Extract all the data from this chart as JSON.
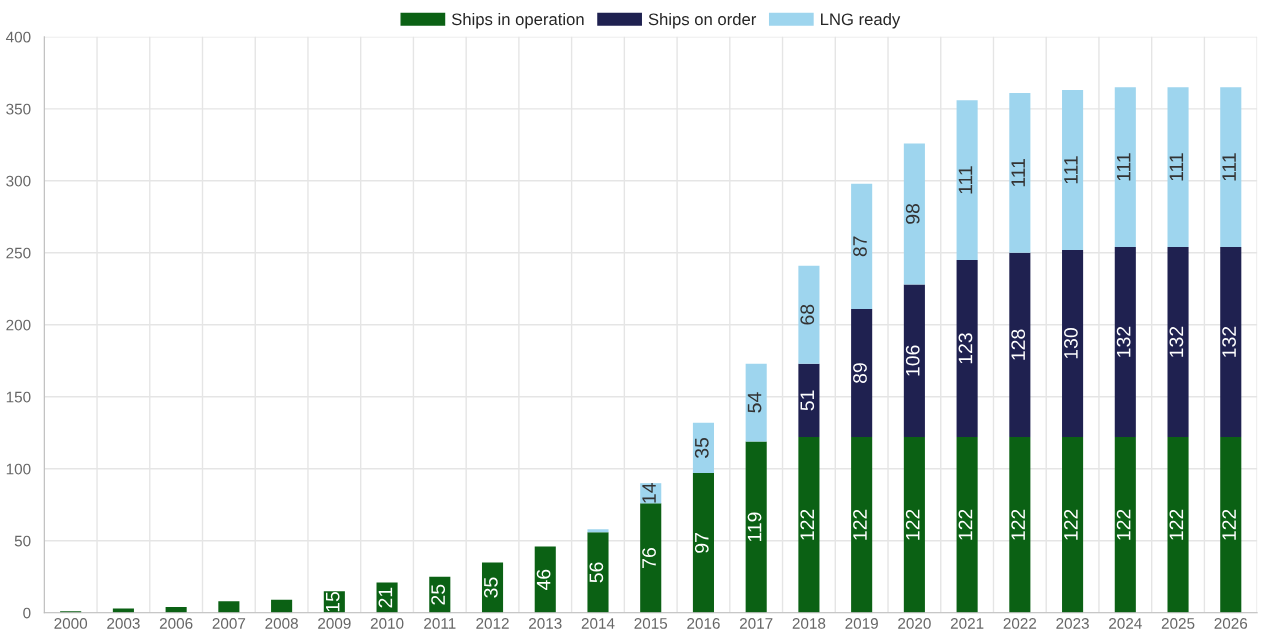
{
  "chart_data": {
    "type": "bar",
    "stacked": true,
    "categories": [
      "2000",
      "2003",
      "2006",
      "2007",
      "2008",
      "2009",
      "2010",
      "2011",
      "2012",
      "2013",
      "2014",
      "2015",
      "2016",
      "2017",
      "2018",
      "2019",
      "2020",
      "2021",
      "2022",
      "2023",
      "2024",
      "2025",
      "2026"
    ],
    "series": [
      {
        "name": "Ships in operation",
        "color": "#0b6114",
        "values": [
          1,
          3,
          4,
          8,
          9,
          15,
          21,
          25,
          35,
          46,
          56,
          76,
          97,
          119,
          122,
          122,
          122,
          122,
          122,
          122,
          122,
          122,
          122
        ],
        "value_labels": [
          null,
          null,
          null,
          null,
          null,
          "15",
          "21",
          "25",
          "35",
          "46",
          "56",
          "76",
          "97",
          "119",
          "122",
          "122",
          "122",
          "122",
          "122",
          "122",
          "122",
          "122",
          "122"
        ]
      },
      {
        "name": "Ships on order",
        "color": "#1f2150",
        "values": [
          null,
          null,
          null,
          null,
          null,
          null,
          null,
          null,
          null,
          null,
          null,
          null,
          null,
          null,
          51,
          89,
          106,
          123,
          128,
          130,
          132,
          132,
          132
        ],
        "value_labels": [
          null,
          null,
          null,
          null,
          null,
          null,
          null,
          null,
          null,
          null,
          null,
          null,
          null,
          null,
          "51",
          "89",
          "106",
          "123",
          "128",
          "130",
          "132",
          "132",
          "132"
        ]
      },
      {
        "name": "LNG ready",
        "color": "#9ed5ee",
        "values": [
          null,
          null,
          null,
          null,
          null,
          null,
          null,
          null,
          null,
          null,
          2,
          14,
          35,
          54,
          68,
          87,
          98,
          111,
          111,
          111,
          111,
          111,
          111
        ],
        "value_labels": [
          null,
          null,
          null,
          null,
          null,
          null,
          null,
          null,
          null,
          null,
          null,
          "14",
          "35",
          "54",
          "68",
          "87",
          "98",
          "111",
          "111",
          "111",
          "111",
          "111",
          "111"
        ]
      }
    ],
    "ylim": [
      0,
      400
    ],
    "yticks": [
      0,
      50,
      100,
      150,
      200,
      250,
      300,
      350,
      400
    ],
    "grid": true,
    "legend": "top"
  }
}
